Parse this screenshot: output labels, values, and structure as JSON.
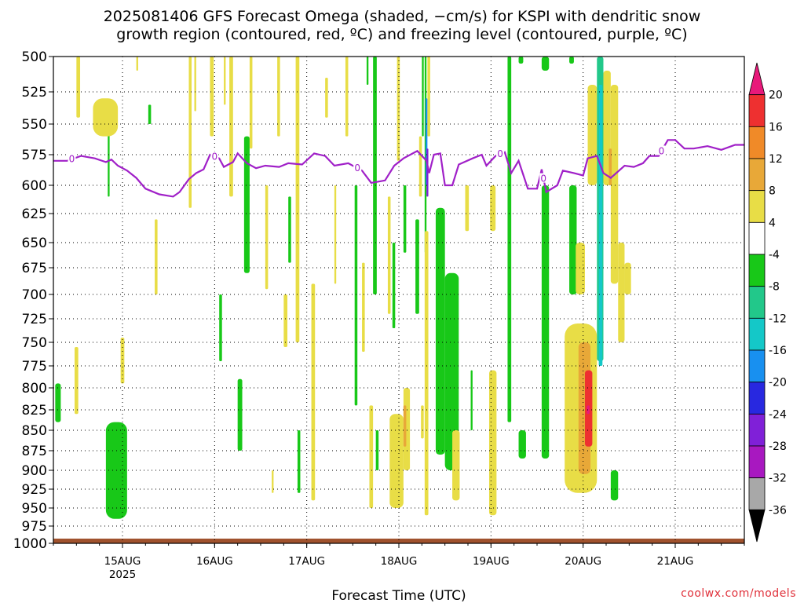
{
  "title_line1": "2025081406 GFS Forecast Omega (shaded, −cm/s) for KSPI with dendritic snow",
  "title_line2": "growth region (contoured, red, ºC) and freezing level (contoured, purple, ºC)",
  "xlabel": "Forecast Time (UTC)",
  "watermark": "coolwx.com/models",
  "colors": {
    "freezing_line": "#a020c8",
    "ground": "#a0522d",
    "grid": "#000000"
  },
  "chart_data": {
    "type": "heatmap",
    "y_axis": {
      "label": "",
      "ticks": [
        "500",
        "525",
        "550",
        "575",
        "600",
        "625",
        "650",
        "675",
        "700",
        "725",
        "750",
        "775",
        "800",
        "825",
        "850",
        "875",
        "900",
        "925",
        "950",
        "975",
        "1000"
      ],
      "range_hpa": [
        500,
        1000
      ],
      "inverted": true
    },
    "x_axis": {
      "label": "Forecast Time (UTC)",
      "ticks": [
        {
          "label": "15AUG",
          "sub": "2025",
          "day": 1.0
        },
        {
          "label": "16AUG",
          "sub": "",
          "day": 2.0
        },
        {
          "label": "17AUG",
          "sub": "",
          "day": 3.0
        },
        {
          "label": "18AUG",
          "sub": "",
          "day": 4.0
        },
        {
          "label": "19AUG",
          "sub": "",
          "day": 5.0
        },
        {
          "label": "20AUG",
          "sub": "",
          "day": 6.0
        },
        {
          "label": "21AUG",
          "sub": "",
          "day": 7.0
        }
      ],
      "range_days": [
        0.25,
        7.75
      ]
    },
    "colorbar": {
      "labels": [
        "20",
        "16",
        "12",
        "8",
        "4",
        "-4",
        "-8",
        "-12",
        "-16",
        "-20",
        "-24",
        "-28",
        "-32",
        "-36"
      ],
      "bins": [
        {
          "color": "#e8197a"
        },
        {
          "color": "#ee3030"
        },
        {
          "color": "#f08a28"
        },
        {
          "color": "#e8a838"
        },
        {
          "color": "#e8dd46"
        },
        {
          "color": "#ffffff"
        },
        {
          "color": "#18c818"
        },
        {
          "color": "#22c88a"
        },
        {
          "color": "#14c8c8"
        },
        {
          "color": "#1890f0"
        },
        {
          "color": "#2828e0"
        },
        {
          "color": "#8020d8"
        },
        {
          "color": "#a818c0"
        },
        {
          "color": "#a8a8a8"
        },
        {
          "color": "#000000"
        }
      ]
    },
    "freezing_level": {
      "label": "0",
      "series": [
        [
          0.25,
          580
        ],
        [
          0.4,
          580
        ],
        [
          0.55,
          576
        ],
        [
          0.7,
          578
        ],
        [
          0.82,
          581
        ],
        [
          0.88,
          579
        ],
        [
          0.95,
          584
        ],
        [
          1.05,
          588
        ],
        [
          1.15,
          594
        ],
        [
          1.25,
          603
        ],
        [
          1.4,
          608
        ],
        [
          1.55,
          610
        ],
        [
          1.62,
          606
        ],
        [
          1.72,
          595
        ],
        [
          1.8,
          590
        ],
        [
          1.88,
          587
        ],
        [
          1.95,
          575
        ],
        [
          2.05,
          578
        ],
        [
          2.1,
          585
        ],
        [
          2.2,
          581
        ],
        [
          2.25,
          574
        ],
        [
          2.35,
          582
        ],
        [
          2.45,
          586
        ],
        [
          2.55,
          584
        ],
        [
          2.7,
          585
        ],
        [
          2.8,
          582
        ],
        [
          2.95,
          583
        ],
        [
          3.08,
          574
        ],
        [
          3.2,
          576
        ],
        [
          3.3,
          584
        ],
        [
          3.45,
          582
        ],
        [
          3.6,
          588
        ],
        [
          3.7,
          598
        ],
        [
          3.85,
          596
        ],
        [
          3.95,
          584
        ],
        [
          4.05,
          578
        ],
        [
          4.2,
          572
        ],
        [
          4.3,
          580
        ],
        [
          4.33,
          590
        ],
        [
          4.38,
          575
        ],
        [
          4.45,
          574
        ],
        [
          4.5,
          600
        ],
        [
          4.58,
          600
        ],
        [
          4.65,
          583
        ],
        [
          4.8,
          578
        ],
        [
          4.9,
          575
        ],
        [
          4.95,
          584
        ],
        [
          5.05,
          576
        ],
        [
          5.15,
          573
        ],
        [
          5.22,
          590
        ],
        [
          5.3,
          580
        ],
        [
          5.4,
          603
        ],
        [
          5.5,
          603
        ],
        [
          5.55,
          587
        ],
        [
          5.6,
          606
        ],
        [
          5.72,
          600
        ],
        [
          5.78,
          588
        ],
        [
          5.9,
          590
        ],
        [
          6.0,
          592
        ],
        [
          6.05,
          578
        ],
        [
          6.15,
          576
        ],
        [
          6.22,
          590
        ],
        [
          6.3,
          594
        ],
        [
          6.45,
          584
        ],
        [
          6.55,
          585
        ],
        [
          6.65,
          582
        ],
        [
          6.72,
          576
        ],
        [
          6.82,
          576
        ],
        [
          6.92,
          563
        ],
        [
          7.0,
          563
        ],
        [
          7.1,
          570
        ],
        [
          7.2,
          570
        ],
        [
          7.35,
          568
        ],
        [
          7.5,
          571
        ],
        [
          7.65,
          567
        ],
        [
          7.75,
          567
        ]
      ]
    },
    "shaded_regions": [
      {
        "t": [
          0.27,
          0.33
        ],
        "p": [
          795,
          840
        ],
        "bin": 6
      },
      {
        "t": [
          0.48,
          0.52
        ],
        "p": [
          755,
          830
        ],
        "bin": 4
      },
      {
        "t": [
          0.5,
          0.54
        ],
        "p": [
          500,
          545
        ],
        "bin": 4
      },
      {
        "t": [
          0.84,
          0.86
        ],
        "p": [
          545,
          610
        ],
        "bin": 6
      },
      {
        "t": [
          0.98,
          1.02
        ],
        "p": [
          745,
          795
        ],
        "bin": 4
      },
      {
        "t": [
          0.68,
          0.95
        ],
        "p": [
          530,
          560
        ],
        "bin": 4
      },
      {
        "t": [
          0.82,
          1.05
        ],
        "p": [
          840,
          965
        ],
        "bin": 6
      },
      {
        "t": [
          1.15,
          1.17
        ],
        "p": [
          500,
          510
        ],
        "bin": 4
      },
      {
        "t": [
          1.28,
          1.31
        ],
        "p": [
          535,
          550
        ],
        "bin": 6
      },
      {
        "t": [
          1.35,
          1.38
        ],
        "p": [
          630,
          700
        ],
        "bin": 4
      },
      {
        "t": [
          1.72,
          1.75
        ],
        "p": [
          500,
          620
        ],
        "bin": 4
      },
      {
        "t": [
          1.78,
          1.8
        ],
        "p": [
          500,
          540
        ],
        "bin": 4
      },
      {
        "t": [
          1.95,
          1.99
        ],
        "p": [
          500,
          560
        ],
        "bin": 4
      },
      {
        "t": [
          2.05,
          2.08
        ],
        "p": [
          700,
          770
        ],
        "bin": 6
      },
      {
        "t": [
          2.1,
          2.12
        ],
        "p": [
          500,
          535
        ],
        "bin": 4
      },
      {
        "t": [
          2.16,
          2.2
        ],
        "p": [
          500,
          610
        ],
        "bin": 4
      },
      {
        "t": [
          2.25,
          2.3
        ],
        "p": [
          790,
          875
        ],
        "bin": 6
      },
      {
        "t": [
          2.32,
          2.38
        ],
        "p": [
          560,
          680
        ],
        "bin": 6
      },
      {
        "t": [
          2.38,
          2.41
        ],
        "p": [
          500,
          570
        ],
        "bin": 4
      },
      {
        "t": [
          2.55,
          2.58
        ],
        "p": [
          600,
          695
        ],
        "bin": 4
      },
      {
        "t": [
          2.62,
          2.64
        ],
        "p": [
          900,
          930
        ],
        "bin": 4
      },
      {
        "t": [
          2.68,
          2.71
        ],
        "p": [
          500,
          560
        ],
        "bin": 4
      },
      {
        "t": [
          2.75,
          2.79
        ],
        "p": [
          700,
          755
        ],
        "bin": 4
      },
      {
        "t": [
          2.8,
          2.83
        ],
        "p": [
          610,
          670
        ],
        "bin": 6
      },
      {
        "t": [
          2.88,
          2.92
        ],
        "p": [
          500,
          750
        ],
        "bin": 4
      },
      {
        "t": [
          2.9,
          2.93
        ],
        "p": [
          850,
          930
        ],
        "bin": 6
      },
      {
        "t": [
          3.05,
          3.09
        ],
        "p": [
          690,
          940
        ],
        "bin": 4
      },
      {
        "t": [
          3.2,
          3.23
        ],
        "p": [
          515,
          545
        ],
        "bin": 4
      },
      {
        "t": [
          3.3,
          3.32
        ],
        "p": [
          600,
          690
        ],
        "bin": 4
      },
      {
        "t": [
          3.42,
          3.45
        ],
        "p": [
          500,
          560
        ],
        "bin": 4
      },
      {
        "t": [
          3.52,
          3.55
        ],
        "p": [
          600,
          820
        ],
        "bin": 6
      },
      {
        "t": [
          3.6,
          3.63
        ],
        "p": [
          670,
          760
        ],
        "bin": 4
      },
      {
        "t": [
          3.65,
          3.67
        ],
        "p": [
          500,
          520
        ],
        "bin": 6
      },
      {
        "t": [
          3.68,
          3.72
        ],
        "p": [
          820,
          950
        ],
        "bin": 4
      },
      {
        "t": [
          3.72,
          3.76
        ],
        "p": [
          500,
          700
        ],
        "bin": 6
      },
      {
        "t": [
          3.75,
          3.78
        ],
        "p": [
          850,
          900
        ],
        "bin": 6
      },
      {
        "t": [
          3.88,
          3.91
        ],
        "p": [
          610,
          720
        ],
        "bin": 4
      },
      {
        "t": [
          3.93,
          3.96
        ],
        "p": [
          650,
          735
        ],
        "bin": 6
      },
      {
        "t": [
          3.98,
          4.01
        ],
        "p": [
          500,
          580
        ],
        "bin": 4
      },
      {
        "t": [
          3.9,
          4.05
        ],
        "p": [
          830,
          950
        ],
        "bin": 4
      },
      {
        "t": [
          4.05,
          4.08
        ],
        "p": [
          600,
          660
        ],
        "bin": 6
      },
      {
        "t": [
          4.05,
          4.12
        ],
        "p": [
          800,
          900
        ],
        "bin": 4
      },
      {
        "t": [
          4.05,
          4.08
        ],
        "p": [
          820,
          870
        ],
        "bin": 3
      },
      {
        "t": [
          4.18,
          4.22
        ],
        "p": [
          630,
          720
        ],
        "bin": 6
      },
      {
        "t": [
          4.22,
          4.25
        ],
        "p": [
          560,
          610
        ],
        "bin": 4
      },
      {
        "t": [
          4.24,
          4.27
        ],
        "p": [
          820,
          860
        ],
        "bin": 4
      },
      {
        "t": [
          4.25,
          4.27
        ],
        "p": [
          500,
          560
        ],
        "bin": 6
      },
      {
        "t": [
          4.28,
          4.3
        ],
        "p": [
          500,
          660
        ],
        "bin": 6
      },
      {
        "t": [
          4.29,
          4.31
        ],
        "p": [
          530,
          600
        ],
        "bin": 9
      },
      {
        "t": [
          4.3,
          4.32
        ],
        "p": [
          570,
          610
        ],
        "bin": 11
      },
      {
        "t": [
          4.31,
          4.34
        ],
        "p": [
          500,
          560
        ],
        "bin": 4
      },
      {
        "t": [
          4.28,
          4.32
        ],
        "p": [
          640,
          960
        ],
        "bin": 4
      },
      {
        "t": [
          4.4,
          4.5
        ],
        "p": [
          620,
          880
        ],
        "bin": 6
      },
      {
        "t": [
          4.5,
          4.65
        ],
        "p": [
          680,
          900
        ],
        "bin": 6
      },
      {
        "t": [
          4.58,
          4.66
        ],
        "p": [
          850,
          940
        ],
        "bin": 4
      },
      {
        "t": [
          4.72,
          4.76
        ],
        "p": [
          600,
          640
        ],
        "bin": 4
      },
      {
        "t": [
          4.78,
          4.8
        ],
        "p": [
          780,
          850
        ],
        "bin": 6
      },
      {
        "t": [
          4.98,
          5.06
        ],
        "p": [
          780,
          960
        ],
        "bin": 4
      },
      {
        "t": [
          4.99,
          5.05
        ],
        "p": [
          600,
          640
        ],
        "bin": 4
      },
      {
        "t": [
          5.18,
          5.22
        ],
        "p": [
          500,
          840
        ],
        "bin": 6
      },
      {
        "t": [
          5.3,
          5.35
        ],
        "p": [
          500,
          505
        ],
        "bin": 6
      },
      {
        "t": [
          5.3,
          5.38
        ],
        "p": [
          850,
          885
        ],
        "bin": 6
      },
      {
        "t": [
          5.55,
          5.63
        ],
        "p": [
          600,
          885
        ],
        "bin": 6
      },
      {
        "t": [
          5.55,
          5.63
        ],
        "p": [
          500,
          510
        ],
        "bin": 6
      },
      {
        "t": [
          5.85,
          5.93
        ],
        "p": [
          600,
          700
        ],
        "bin": 6
      },
      {
        "t": [
          5.85,
          5.9
        ],
        "p": [
          500,
          505
        ],
        "bin": 6
      },
      {
        "t": [
          5.92,
          6.02
        ],
        "p": [
          650,
          700
        ],
        "bin": 4
      },
      {
        "t": [
          5.8,
          6.15
        ],
        "p": [
          730,
          930
        ],
        "bin": 4
      },
      {
        "t": [
          5.95,
          6.08
        ],
        "p": [
          750,
          905
        ],
        "bin": 3
      },
      {
        "t": [
          6.02,
          6.1
        ],
        "p": [
          780,
          870
        ],
        "bin": 1
      },
      {
        "t": [
          6.04,
          6.07
        ],
        "p": [
          820,
          830
        ],
        "bin": 0
      },
      {
        "t": [
          6.05,
          6.15
        ],
        "p": [
          520,
          600
        ],
        "bin": 4
      },
      {
        "t": [
          6.15,
          6.22
        ],
        "p": [
          500,
          770
        ],
        "bin": 7
      },
      {
        "t": [
          6.18,
          6.2
        ],
        "p": [
          525,
          600
        ],
        "bin": 9
      },
      {
        "t": [
          6.17,
          6.21
        ],
        "p": [
          520,
          775
        ],
        "bin": 8
      },
      {
        "t": [
          6.22,
          6.3
        ],
        "p": [
          510,
          600
        ],
        "bin": 4
      },
      {
        "t": [
          6.3,
          6.38
        ],
        "p": [
          520,
          690
        ],
        "bin": 4
      },
      {
        "t": [
          6.28,
          6.31
        ],
        "p": [
          570,
          600
        ],
        "bin": 3
      },
      {
        "t": [
          6.38,
          6.45
        ],
        "p": [
          650,
          750
        ],
        "bin": 4
      },
      {
        "t": [
          6.3,
          6.38
        ],
        "p": [
          900,
          940
        ],
        "bin": 6
      },
      {
        "t": [
          6.45,
          6.52
        ],
        "p": [
          670,
          700
        ],
        "bin": 4
      }
    ]
  }
}
